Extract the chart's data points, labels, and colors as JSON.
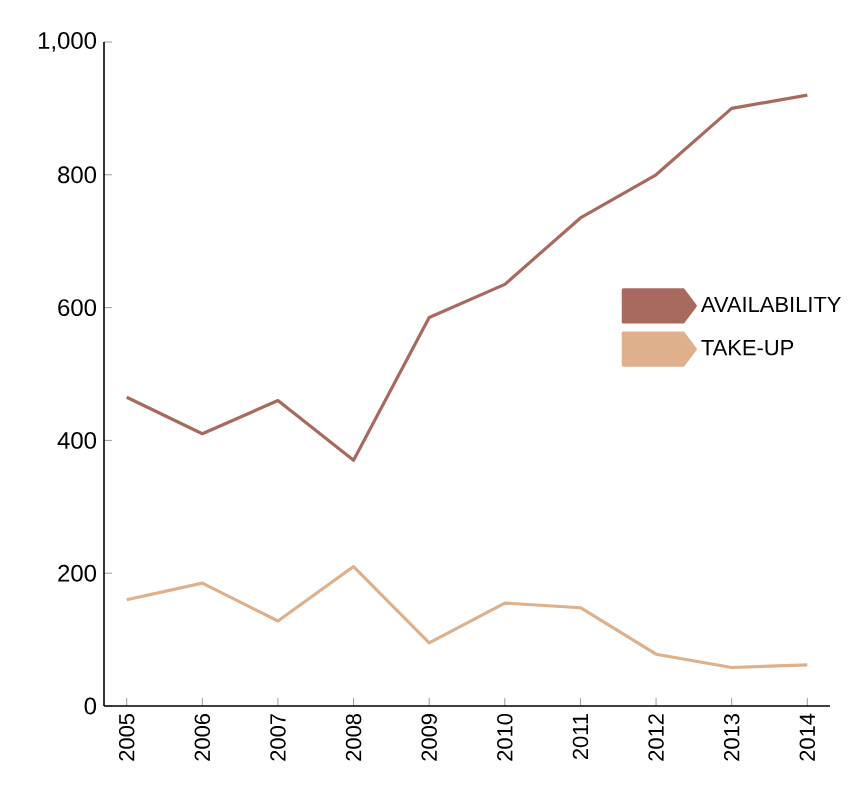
{
  "chart_data": {
    "type": "line",
    "categories": [
      "2005",
      "2006",
      "2007",
      "2008",
      "2009",
      "2010",
      "2011",
      "2012",
      "2013",
      "2014"
    ],
    "series": [
      {
        "name": "AVAILABILITY",
        "color": "#a86a5e",
        "values": [
          465,
          410,
          460,
          370,
          585,
          635,
          735,
          800,
          900,
          920
        ]
      },
      {
        "name": "TAKE-UP",
        "color": "#deb08c",
        "values": [
          160,
          185,
          128,
          210,
          95,
          155,
          148,
          78,
          58,
          62
        ]
      }
    ],
    "ylim": [
      0,
      1000
    ],
    "yticks": [
      0,
      200,
      400,
      600,
      800,
      {
        "value": 1000,
        "label": "1,000"
      }
    ],
    "grid": false,
    "legend": "right",
    "marker": "none",
    "line_style": "solid"
  }
}
